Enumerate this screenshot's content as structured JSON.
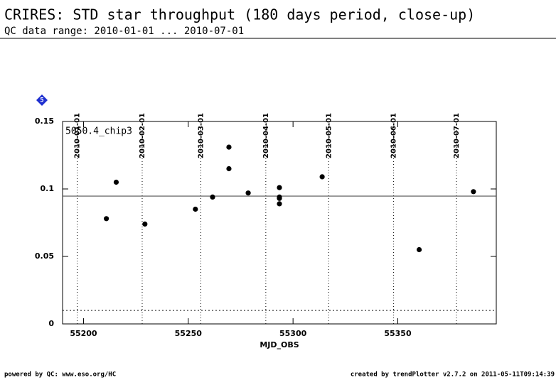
{
  "chart_data": {
    "type": "scatter",
    "title": "CRIRES: STD star throughput (180 days period, close-up)",
    "subtitle": "QC data range: 2010-01-01 ... 2010-07-01",
    "badge": "5",
    "label": "5050.4_chip3",
    "xlabel": "MJD_OBS",
    "x": [
      55210.9,
      55215.6,
      55229.3,
      55253.4,
      55261.6,
      55269.4,
      55269.4,
      55278.6,
      55293.5,
      55293.5,
      55293.5,
      55293.5,
      55313.9,
      55360.2,
      55386.1
    ],
    "values": [
      0.078,
      0.105,
      0.074,
      0.085,
      0.094,
      0.131,
      0.115,
      0.097,
      0.101,
      0.094,
      0.093,
      0.089,
      0.109,
      0.055,
      0.098
    ],
    "color": "#000000",
    "xlim": [
      55190,
      55397
    ],
    "ylim": [
      0,
      0.15
    ],
    "xticks": [
      55200,
      55250,
      55300,
      55350
    ],
    "yticks": [
      0,
      0.05,
      0.1,
      0.15
    ],
    "mean_line": 0.0947,
    "lower_limit": 0.01,
    "date_markers": [
      {
        "value": 55197,
        "label": "2010-01-01"
      },
      {
        "value": 55228,
        "label": "2010-02-01"
      },
      {
        "value": 55256,
        "label": "2010-03-01"
      },
      {
        "value": 55287,
        "label": "2010-04-01"
      },
      {
        "value": 55317,
        "label": "2010-05-01"
      },
      {
        "value": 55348,
        "label": "2010-06-01"
      },
      {
        "value": 55378,
        "label": "2010-07-01"
      }
    ],
    "footer_left": "powered by QC: www.eso.org/HC",
    "footer_right": "created by trendPlotter v2.7.2 on 2011-05-11T09:14:39"
  }
}
